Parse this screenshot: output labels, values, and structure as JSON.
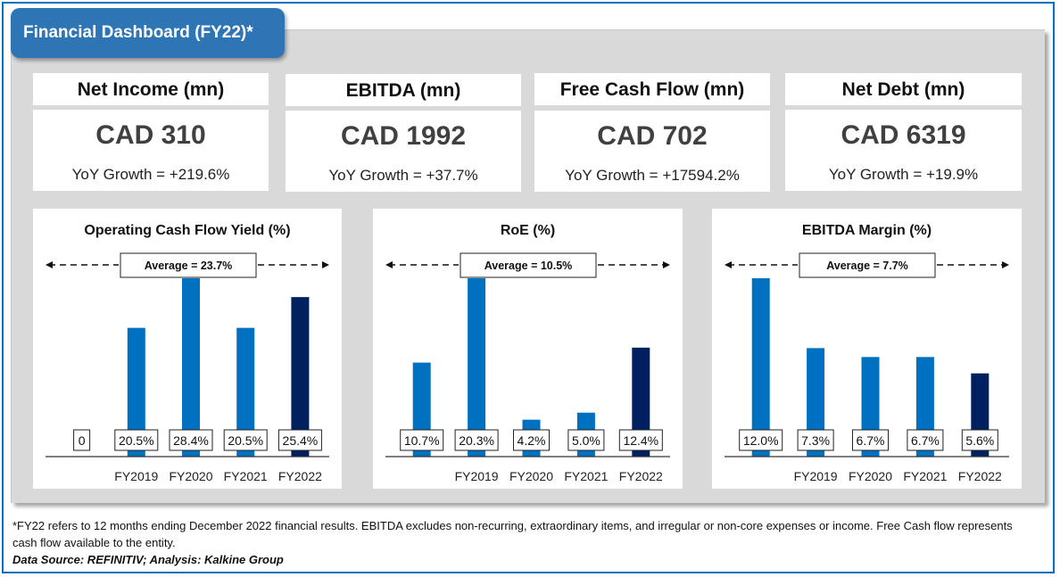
{
  "header": {
    "title": "Financial Dashboard (FY22)*"
  },
  "colors": {
    "accent": "#2e75b6",
    "border": "#0070c0",
    "bar": "#0070c0",
    "bar_highlight": "#002060",
    "panel": "#d9d9d9"
  },
  "kpis": [
    {
      "label": "Net Income (mn)",
      "value": "CAD 310",
      "growth": "YoY Growth = +219.6%"
    },
    {
      "label": "EBITDA (mn)",
      "value": "CAD 1992",
      "growth": "YoY Growth = +37.7%"
    },
    {
      "label": "Free Cash Flow (mn)",
      "value": "CAD 702",
      "growth": "YoY Growth = +17594.2%"
    },
    {
      "label": "Net Debt (mn)",
      "value": "CAD 6319",
      "growth": "YoY Growth = +19.9%"
    }
  ],
  "chart_data": [
    {
      "type": "bar",
      "title": "Operating Cash Flow Yield (%)",
      "average_label": "Average = 23.7%",
      "categories": [
        "",
        "FY2019",
        "FY2020",
        "FY2021",
        "FY2022"
      ],
      "values": [
        0,
        20.5,
        28.4,
        20.5,
        25.4
      ],
      "data_labels": [
        "0",
        "20.5%",
        "28.4%",
        "20.5%",
        "25.4%"
      ],
      "highlight_index": 4,
      "xlabel": "",
      "ylabel": "",
      "grid": false
    },
    {
      "type": "bar",
      "title": "RoE (%)",
      "average_label": "Average = 10.5%",
      "categories": [
        "",
        "FY2019",
        "FY2020",
        "FY2021",
        "FY2022"
      ],
      "values": [
        10.7,
        20.3,
        4.2,
        5.0,
        12.4
      ],
      "data_labels": [
        "10.7%",
        "20.3%",
        "4.2%",
        "5.0%",
        "12.4%"
      ],
      "highlight_index": 4,
      "xlabel": "",
      "ylabel": "",
      "grid": false
    },
    {
      "type": "bar",
      "title": "EBITDA Margin (%)",
      "average_label": "Average = 7.7%",
      "categories": [
        "",
        "FY2019",
        "FY2020",
        "FY2021",
        "FY2022"
      ],
      "values": [
        12.0,
        7.3,
        6.7,
        6.7,
        5.6
      ],
      "data_labels": [
        "12.0%",
        "7.3%",
        "6.7%",
        "6.7%",
        "5.6%"
      ],
      "highlight_index": 4,
      "xlabel": "",
      "ylabel": "",
      "grid": false
    }
  ],
  "footer": {
    "note": "*FY22  refers to 12 months ending December 2022 financial results. EBITDA excludes non-recurring, extraordinary items, and irregular or non-core expenses or income. Free Cash flow represents cash flow available to the entity.",
    "source": "Data Source: REFINITIV; Analysis: Kalkine Group"
  }
}
